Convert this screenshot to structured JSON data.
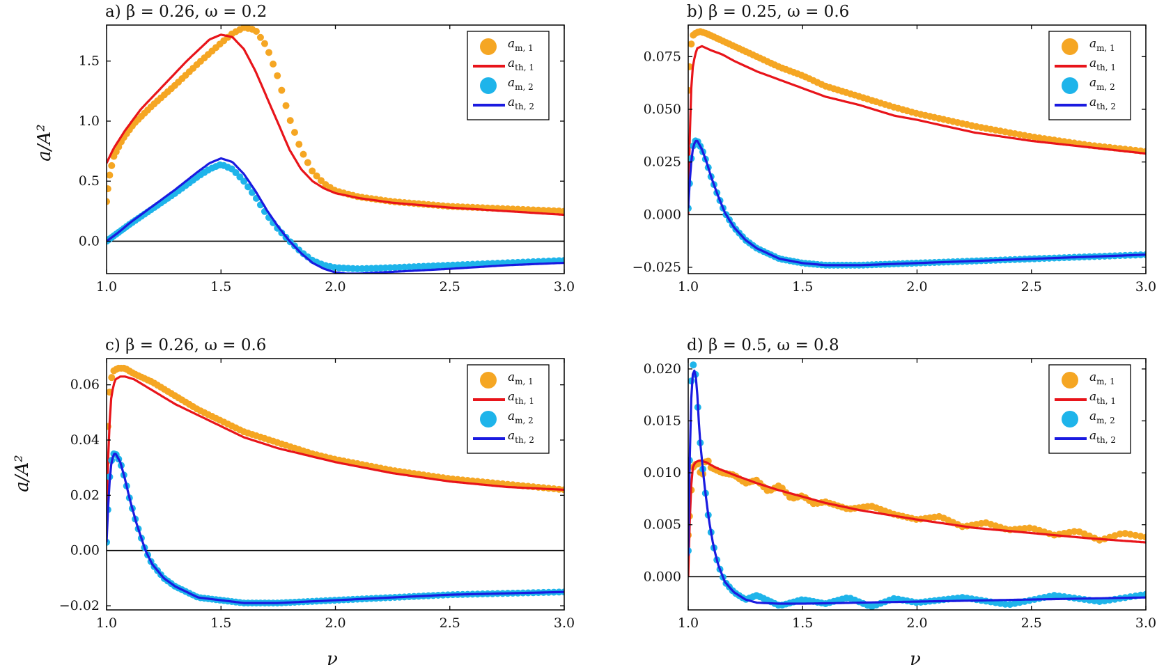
{
  "figure": {
    "ylabel": "a/A²",
    "xlabel": "ν"
  },
  "chart_data": [
    {
      "type": "line",
      "title": "a)  β = 0.26, ω = 0.2",
      "xlim": [
        1.0,
        3.0
      ],
      "ylim": [
        -0.27,
        1.8
      ],
      "yticks": [
        0.0,
        0.5,
        1.0,
        1.5
      ],
      "ytick_labels": [
        "0.0",
        "0.5",
        "1.0",
        "1.5"
      ],
      "xticks": [
        1.0,
        1.5,
        2.0,
        2.5,
        3.0
      ],
      "xtick_labels": [
        "1.0",
        "1.5",
        "2.0",
        "2.5",
        "3.0"
      ],
      "legend": {
        "position": "top-right",
        "entries": [
          "a_m,1",
          "a_th,1",
          "a_m,2",
          "a_th,2"
        ]
      },
      "series": [
        {
          "name": "a_m,1",
          "kind": "scatter",
          "color": "#f5a623",
          "x": [
            1.0,
            1.01,
            1.03,
            1.07,
            1.12,
            1.2,
            1.3,
            1.4,
            1.5,
            1.55,
            1.6,
            1.65,
            1.7,
            1.75,
            1.8,
            1.85,
            1.9,
            1.95,
            2.0,
            2.1,
            2.25,
            2.5,
            2.75,
            3.0
          ],
          "y": [
            0.33,
            0.52,
            0.7,
            0.85,
            0.98,
            1.13,
            1.3,
            1.48,
            1.65,
            1.73,
            1.78,
            1.76,
            1.62,
            1.36,
            1.02,
            0.76,
            0.58,
            0.48,
            0.42,
            0.37,
            0.33,
            0.29,
            0.27,
            0.25
          ]
        },
        {
          "name": "a_th,1",
          "kind": "line",
          "color": "#e8141a",
          "x": [
            1.0,
            1.03,
            1.08,
            1.15,
            1.25,
            1.35,
            1.45,
            1.5,
            1.55,
            1.6,
            1.65,
            1.7,
            1.75,
            1.8,
            1.85,
            1.9,
            1.95,
            2.0,
            2.1,
            2.25,
            2.5,
            2.75,
            3.0
          ],
          "y": [
            0.65,
            0.77,
            0.92,
            1.1,
            1.3,
            1.5,
            1.68,
            1.72,
            1.7,
            1.6,
            1.42,
            1.2,
            0.98,
            0.76,
            0.6,
            0.5,
            0.44,
            0.4,
            0.36,
            0.32,
            0.28,
            0.25,
            0.22
          ]
        },
        {
          "name": "a_m,2",
          "kind": "scatter",
          "color": "#1eb4ea",
          "x": [
            1.0,
            1.05,
            1.1,
            1.2,
            1.3,
            1.4,
            1.45,
            1.5,
            1.55,
            1.6,
            1.65,
            1.7,
            1.75,
            1.8,
            1.85,
            1.9,
            1.95,
            2.0,
            2.1,
            2.25,
            2.5,
            2.75,
            3.0
          ],
          "y": [
            0.0,
            0.07,
            0.14,
            0.27,
            0.4,
            0.54,
            0.6,
            0.64,
            0.6,
            0.5,
            0.37,
            0.22,
            0.1,
            0.0,
            -0.09,
            -0.16,
            -0.2,
            -0.22,
            -0.23,
            -0.22,
            -0.2,
            -0.18,
            -0.16
          ]
        },
        {
          "name": "a_th,2",
          "kind": "line",
          "color": "#1a1ae0",
          "x": [
            1.0,
            1.05,
            1.1,
            1.2,
            1.3,
            1.4,
            1.45,
            1.5,
            1.55,
            1.6,
            1.65,
            1.7,
            1.75,
            1.8,
            1.85,
            1.9,
            1.95,
            2.0,
            2.05,
            2.1,
            2.2,
            2.3,
            2.5,
            2.75,
            3.0
          ],
          "y": [
            0.0,
            0.07,
            0.15,
            0.29,
            0.43,
            0.58,
            0.65,
            0.69,
            0.66,
            0.56,
            0.42,
            0.26,
            0.12,
            0.0,
            -0.1,
            -0.18,
            -0.23,
            -0.26,
            -0.27,
            -0.27,
            -0.26,
            -0.25,
            -0.23,
            -0.2,
            -0.18
          ]
        }
      ]
    },
    {
      "type": "line",
      "title": "b)  β = 0.25, ω = 0.6",
      "xlim": [
        1.0,
        3.0
      ],
      "ylim": [
        -0.028,
        0.09
      ],
      "yticks": [
        -0.025,
        0.0,
        0.025,
        0.05,
        0.075
      ],
      "ytick_labels": [
        "−0.025",
        "0.000",
        "0.025",
        "0.050",
        "0.075"
      ],
      "xticks": [
        1.0,
        1.5,
        2.0,
        2.5,
        3.0
      ],
      "xtick_labels": [
        "1.0",
        "1.5",
        "2.0",
        "2.5",
        "3.0"
      ],
      "legend": {
        "position": "top-right",
        "entries": [
          "a_m,1",
          "a_th,1",
          "a_m,2",
          "a_th,2"
        ]
      },
      "series": [
        {
          "name": "a_m,1",
          "kind": "scatter",
          "color": "#f5a623",
          "x": [
            1.0,
            1.01,
            1.02,
            1.03,
            1.05,
            1.08,
            1.12,
            1.2,
            1.3,
            1.4,
            1.5,
            1.6,
            1.75,
            1.9,
            2.0,
            2.25,
            2.5,
            2.75,
            3.0
          ],
          "y": [
            0.059,
            0.079,
            0.085,
            0.086,
            0.087,
            0.086,
            0.084,
            0.08,
            0.075,
            0.07,
            0.066,
            0.061,
            0.056,
            0.051,
            0.048,
            0.042,
            0.037,
            0.033,
            0.03
          ]
        },
        {
          "name": "a_th,1",
          "kind": "line",
          "color": "#e8141a",
          "x": [
            1.0,
            1.01,
            1.02,
            1.03,
            1.04,
            1.06,
            1.1,
            1.15,
            1.2,
            1.3,
            1.4,
            1.5,
            1.6,
            1.75,
            1.9,
            2.0,
            2.25,
            2.5,
            2.75,
            3.0
          ],
          "y": [
            0.0,
            0.055,
            0.07,
            0.076,
            0.079,
            0.08,
            0.078,
            0.076,
            0.073,
            0.068,
            0.064,
            0.06,
            0.056,
            0.052,
            0.047,
            0.045,
            0.039,
            0.035,
            0.032,
            0.029
          ]
        },
        {
          "name": "a_m,2",
          "kind": "scatter",
          "color": "#1eb4ea",
          "x": [
            1.0,
            1.01,
            1.02,
            1.03,
            1.04,
            1.06,
            1.08,
            1.1,
            1.13,
            1.16,
            1.2,
            1.25,
            1.3,
            1.4,
            1.5,
            1.6,
            1.75,
            2.0,
            2.25,
            2.5,
            2.75,
            3.0
          ],
          "y": [
            0.003,
            0.024,
            0.032,
            0.035,
            0.035,
            0.031,
            0.025,
            0.018,
            0.009,
            0.001,
            -0.006,
            -0.012,
            -0.016,
            -0.021,
            -0.023,
            -0.024,
            -0.024,
            -0.023,
            -0.022,
            -0.021,
            -0.02,
            -0.019
          ]
        },
        {
          "name": "a_th,2",
          "kind": "line",
          "color": "#1a1ae0",
          "x": [
            1.0,
            1.01,
            1.02,
            1.03,
            1.04,
            1.06,
            1.08,
            1.1,
            1.13,
            1.16,
            1.2,
            1.25,
            1.3,
            1.4,
            1.5,
            1.6,
            1.75,
            2.0,
            2.25,
            2.5,
            2.75,
            3.0
          ],
          "y": [
            0.003,
            0.022,
            0.031,
            0.035,
            0.035,
            0.031,
            0.025,
            0.018,
            0.009,
            0.001,
            -0.006,
            -0.012,
            -0.016,
            -0.021,
            -0.023,
            -0.024,
            -0.024,
            -0.023,
            -0.022,
            -0.021,
            -0.02,
            -0.019
          ]
        }
      ]
    },
    {
      "type": "line",
      "title": "c)  β = 0.26, ω = 0.6",
      "xlim": [
        1.0,
        3.0
      ],
      "ylim": [
        -0.0215,
        0.0695
      ],
      "yticks": [
        -0.02,
        0.0,
        0.02,
        0.04,
        0.06
      ],
      "ytick_labels": [
        "−0.02",
        "0.00",
        "0.02",
        "0.04",
        "0.06"
      ],
      "xticks": [
        1.0,
        1.5,
        2.0,
        2.5,
        3.0
      ],
      "xtick_labels": [
        "1.0",
        "1.5",
        "2.0",
        "2.5",
        "3.0"
      ],
      "legend": {
        "position": "top-right",
        "entries": [
          "a_m,1",
          "a_th,1",
          "a_m,2",
          "a_th,2"
        ]
      },
      "series": [
        {
          "name": "a_m,1",
          "kind": "scatter",
          "color": "#f5a623",
          "x": [
            1.0,
            1.01,
            1.02,
            1.03,
            1.05,
            1.08,
            1.12,
            1.2,
            1.3,
            1.4,
            1.5,
            1.6,
            1.75,
            1.9,
            2.0,
            2.25,
            2.5,
            2.75,
            3.0
          ],
          "y": [
            0.032,
            0.055,
            0.062,
            0.065,
            0.066,
            0.066,
            0.064,
            0.061,
            0.056,
            0.051,
            0.047,
            0.043,
            0.039,
            0.035,
            0.033,
            0.029,
            0.026,
            0.024,
            0.022
          ]
        },
        {
          "name": "a_th,1",
          "kind": "line",
          "color": "#e8141a",
          "x": [
            1.0,
            1.01,
            1.02,
            1.03,
            1.04,
            1.06,
            1.08,
            1.12,
            1.2,
            1.3,
            1.4,
            1.5,
            1.6,
            1.75,
            1.9,
            2.0,
            2.25,
            2.5,
            2.75,
            3.0
          ],
          "y": [
            0.015,
            0.042,
            0.055,
            0.06,
            0.062,
            0.063,
            0.063,
            0.062,
            0.058,
            0.053,
            0.049,
            0.045,
            0.041,
            0.037,
            0.034,
            0.032,
            0.028,
            0.025,
            0.023,
            0.022
          ]
        },
        {
          "name": "a_m,2",
          "kind": "scatter",
          "color": "#1eb4ea",
          "x": [
            1.0,
            1.01,
            1.02,
            1.03,
            1.04,
            1.06,
            1.08,
            1.1,
            1.13,
            1.17,
            1.2,
            1.25,
            1.3,
            1.4,
            1.5,
            1.6,
            1.75,
            2.0,
            2.25,
            2.5,
            2.75,
            3.0
          ],
          "y": [
            0.003,
            0.024,
            0.032,
            0.035,
            0.035,
            0.032,
            0.026,
            0.019,
            0.01,
            0.0,
            -0.005,
            -0.01,
            -0.013,
            -0.017,
            -0.018,
            -0.019,
            -0.019,
            -0.018,
            -0.017,
            -0.016,
            -0.0155,
            -0.015
          ]
        },
        {
          "name": "a_th,2",
          "kind": "line",
          "color": "#1a1ae0",
          "x": [
            1.0,
            1.01,
            1.02,
            1.03,
            1.04,
            1.06,
            1.08,
            1.1,
            1.13,
            1.17,
            1.2,
            1.25,
            1.3,
            1.4,
            1.5,
            1.6,
            1.75,
            2.0,
            2.25,
            2.5,
            2.75,
            3.0
          ],
          "y": [
            0.003,
            0.022,
            0.031,
            0.035,
            0.035,
            0.032,
            0.026,
            0.019,
            0.01,
            0.0,
            -0.005,
            -0.01,
            -0.013,
            -0.017,
            -0.018,
            -0.019,
            -0.019,
            -0.018,
            -0.017,
            -0.016,
            -0.0155,
            -0.015
          ]
        }
      ]
    },
    {
      "type": "line",
      "title": "d)  β = 0.5, ω = 0.8",
      "xlim": [
        1.0,
        3.0
      ],
      "ylim": [
        -0.0032,
        0.021
      ],
      "yticks": [
        0.0,
        0.005,
        0.01,
        0.015,
        0.02
      ],
      "ytick_labels": [
        "0.000",
        "0.005",
        "0.010",
        "0.015",
        "0.020"
      ],
      "xticks": [
        1.0,
        1.5,
        2.0,
        2.5,
        3.0
      ],
      "xtick_labels": [
        "1.0",
        "1.5",
        "2.0",
        "2.5",
        "3.0"
      ],
      "legend": {
        "position": "top-right",
        "entries": [
          "a_m,1",
          "a_th,1",
          "a_m,2",
          "a_th,2"
        ]
      },
      "series": [
        {
          "name": "a_m,1",
          "kind": "scatter",
          "color": "#f5a623",
          "x": [
            1.0,
            1.02,
            1.04,
            1.06,
            1.08,
            1.1,
            1.15,
            1.2,
            1.25,
            1.3,
            1.35,
            1.4,
            1.45,
            1.5,
            1.55,
            1.6,
            1.7,
            1.8,
            1.9,
            2.0,
            2.1,
            2.2,
            2.3,
            2.4,
            2.5,
            2.6,
            2.7,
            2.8,
            2.9,
            3.0
          ],
          "y": [
            0.004,
            0.0105,
            0.011,
            0.0095,
            0.0115,
            0.0105,
            0.01,
            0.0098,
            0.009,
            0.0093,
            0.0082,
            0.0088,
            0.0075,
            0.0078,
            0.007,
            0.0072,
            0.0065,
            0.0068,
            0.006,
            0.0055,
            0.0058,
            0.0048,
            0.0052,
            0.0045,
            0.0047,
            0.004,
            0.0044,
            0.0035,
            0.0042,
            0.0038
          ]
        },
        {
          "name": "a_th,1",
          "kind": "line",
          "color": "#e8141a",
          "x": [
            1.0,
            1.01,
            1.02,
            1.03,
            1.05,
            1.08,
            1.12,
            1.2,
            1.3,
            1.4,
            1.5,
            1.6,
            1.75,
            2.0,
            2.25,
            2.5,
            2.75,
            3.0
          ],
          "y": [
            0.0,
            0.008,
            0.0105,
            0.011,
            0.0112,
            0.011,
            0.0105,
            0.0098,
            0.009,
            0.0083,
            0.0077,
            0.0071,
            0.0064,
            0.0055,
            0.0047,
            0.0042,
            0.0037,
            0.0033
          ]
        },
        {
          "name": "a_m,2",
          "kind": "scatter",
          "color": "#1eb4ea",
          "x": [
            1.0,
            1.01,
            1.02,
            1.03,
            1.04,
            1.05,
            1.07,
            1.09,
            1.11,
            1.13,
            1.16,
            1.2,
            1.25,
            1.3,
            1.4,
            1.5,
            1.6,
            1.7,
            1.8,
            1.9,
            2.0,
            2.2,
            2.4,
            2.6,
            2.8,
            3.0
          ],
          "y": [
            0.0025,
            0.018,
            0.0205,
            0.02,
            0.017,
            0.0135,
            0.009,
            0.0055,
            0.003,
            0.0012,
            -0.0005,
            -0.0015,
            -0.0022,
            -0.0018,
            -0.0028,
            -0.0022,
            -0.0026,
            -0.002,
            -0.0029,
            -0.0021,
            -0.0025,
            -0.002,
            -0.0027,
            -0.0018,
            -0.0024,
            -0.0017
          ]
        },
        {
          "name": "a_th,2",
          "kind": "line",
          "color": "#1a1ae0",
          "x": [
            1.0,
            1.01,
            1.02,
            1.03,
            1.04,
            1.05,
            1.07,
            1.09,
            1.11,
            1.13,
            1.16,
            1.2,
            1.25,
            1.3,
            1.4,
            1.5,
            1.75,
            2.0,
            2.25,
            2.5,
            2.75,
            3.0
          ],
          "y": [
            0.002,
            0.016,
            0.0195,
            0.02,
            0.0175,
            0.0135,
            0.009,
            0.0055,
            0.003,
            0.0012,
            -0.0005,
            -0.0015,
            -0.0022,
            -0.0025,
            -0.0026,
            -0.0026,
            -0.0025,
            -0.0024,
            -0.0023,
            -0.0022,
            -0.0021,
            -0.002
          ]
        }
      ]
    }
  ]
}
